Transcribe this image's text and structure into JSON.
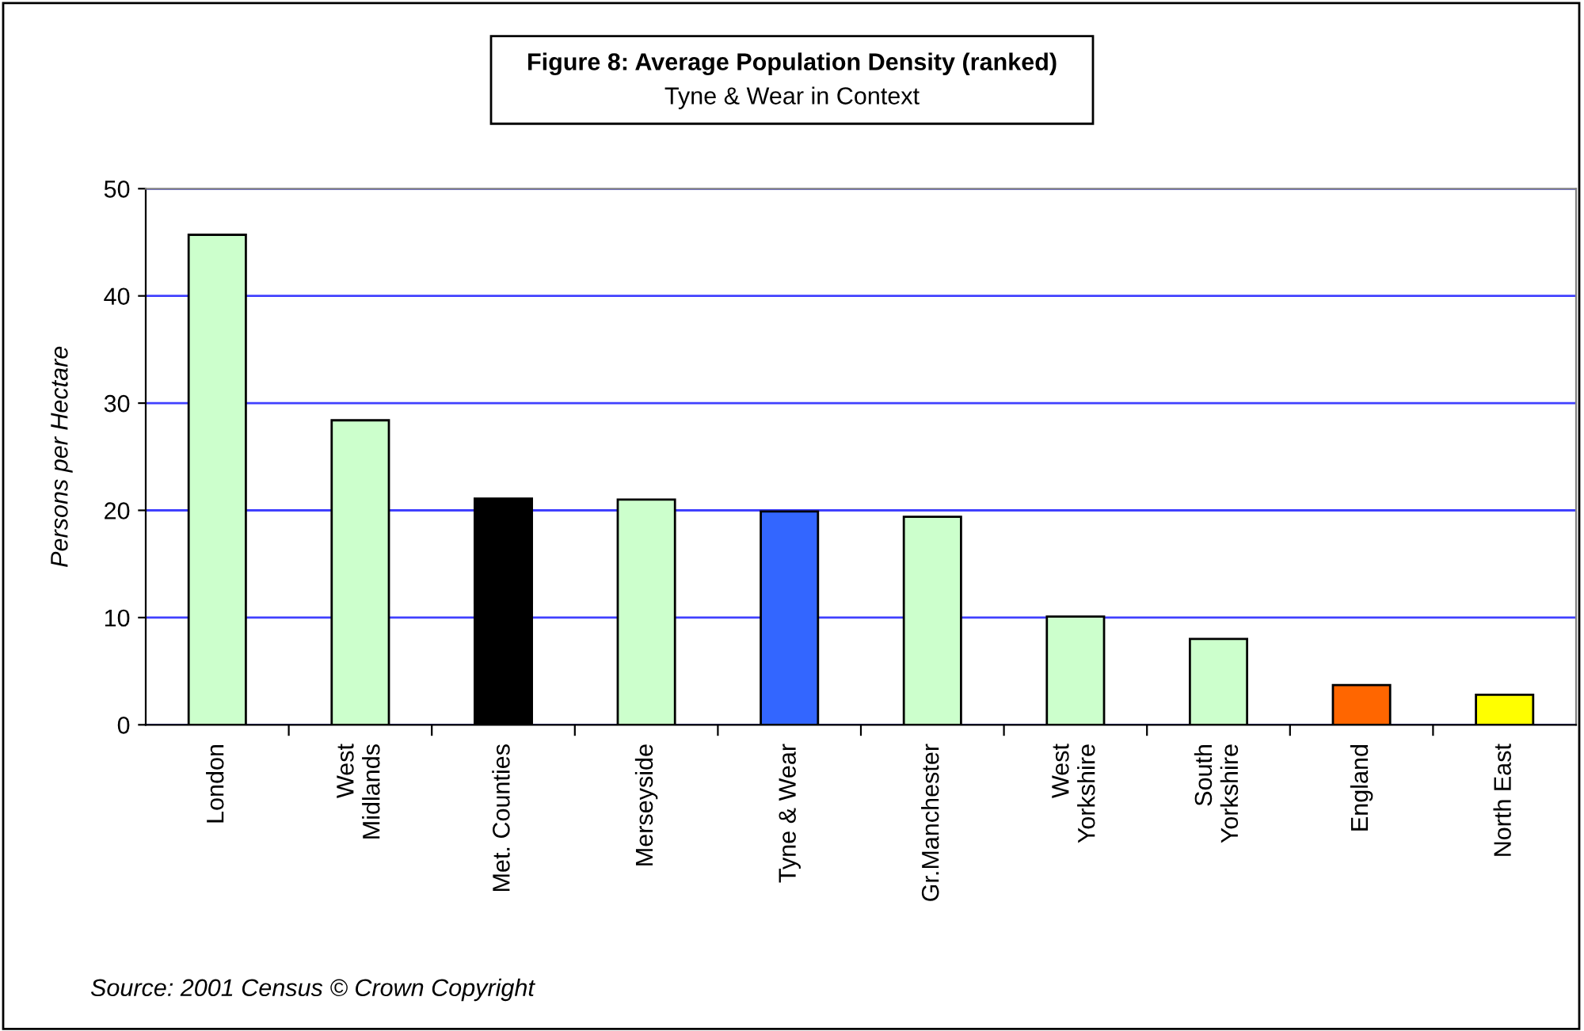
{
  "chart_data": {
    "type": "bar",
    "title": "Figure 8: Average Population Density (ranked)",
    "subtitle": "Tyne & Wear in Context",
    "ylabel": "Persons per Hectare",
    "categories": [
      "London",
      "West\nMidlands",
      "Met. Counties",
      "Merseyside",
      "Tyne & Wear",
      "Gr.Manchester",
      "West\nYorkshire",
      "South\nYorkshire",
      "England",
      "North East"
    ],
    "values": [
      45.7,
      28.4,
      21.1,
      21.0,
      19.9,
      19.4,
      10.1,
      8.0,
      3.7,
      2.8
    ],
    "colors": [
      "#ccffcc",
      "#ccffcc",
      "#000000",
      "#ccffcc",
      "#3366ff",
      "#ccffcc",
      "#ccffcc",
      "#ccffcc",
      "#ff6600",
      "#ffff00"
    ],
    "ylim": [
      0,
      50
    ],
    "yticks": [
      0,
      10,
      20,
      30,
      40,
      50
    ],
    "grid": "y",
    "annotations": [
      "Source: 2001 Census © Crown Copyright"
    ]
  }
}
